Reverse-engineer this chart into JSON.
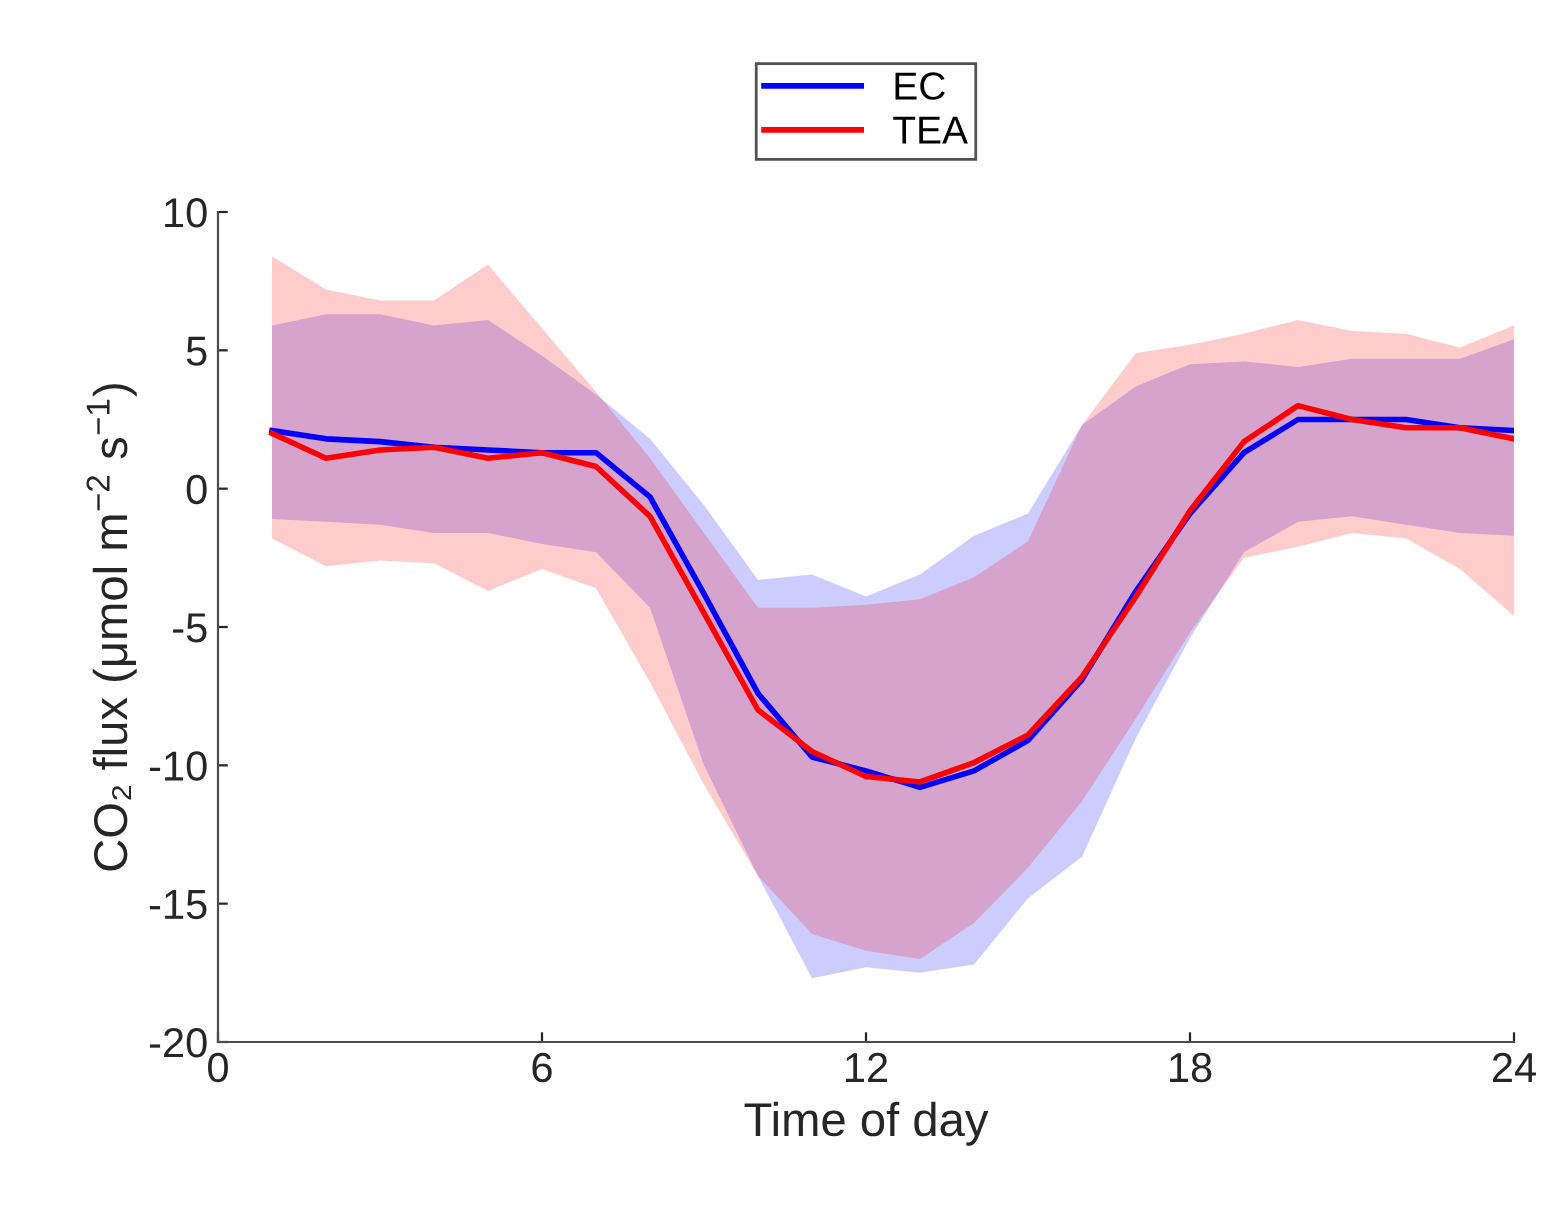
{
  "chart_data": {
    "type": "line",
    "xlabel": "Time of day",
    "ylabel": "CO₂ flux (μmol m$^{−2}$ s$^{−1}$)",
    "x": [
      1,
      2,
      3,
      4,
      5,
      6,
      7,
      8,
      9,
      10,
      11,
      12,
      13,
      14,
      15,
      16,
      17,
      18,
      19,
      20,
      21,
      22,
      23,
      24
    ],
    "series": [
      {
        "name": "EC",
        "color": "#0000ff",
        "values": [
          2.1,
          1.8,
          1.7,
          1.5,
          1.4,
          1.3,
          1.3,
          -0.3,
          -3.8,
          -7.4,
          -9.7,
          -10.2,
          -10.8,
          -10.2,
          -9.1,
          -6.9,
          -3.7,
          -0.9,
          1.3,
          2.5,
          2.5,
          2.5,
          2.2,
          2.1
        ],
        "upper": [
          5.9,
          6.3,
          6.3,
          5.9,
          6.1,
          4.8,
          3.4,
          1.8,
          -0.6,
          -3.3,
          -3.1,
          -3.9,
          -3.1,
          -1.7,
          -0.9,
          2.3,
          3.7,
          4.5,
          4.6,
          4.4,
          4.7,
          4.7,
          4.7,
          5.4
        ],
        "lower": [
          -1.1,
          -1.2,
          -1.3,
          -1.6,
          -1.6,
          -2.0,
          -2.3,
          -4.3,
          -10.0,
          -14.0,
          -17.7,
          -17.3,
          -17.5,
          -17.2,
          -14.8,
          -13.3,
          -9.0,
          -5.4,
          -2.3,
          -1.2,
          -1.0,
          -1.3,
          -1.6,
          -1.7
        ]
      },
      {
        "name": "TEA",
        "color": "#ff0000",
        "values": [
          2.0,
          1.1,
          1.4,
          1.5,
          1.1,
          1.3,
          0.8,
          -1.0,
          -4.5,
          -8.0,
          -9.5,
          -10.4,
          -10.6,
          -9.9,
          -8.9,
          -6.8,
          -3.9,
          -0.8,
          1.7,
          3.0,
          2.5,
          2.2,
          2.2,
          1.8
        ],
        "upper": [
          8.4,
          7.2,
          6.8,
          6.8,
          8.1,
          5.8,
          3.5,
          1.1,
          -1.6,
          -4.3,
          -4.3,
          -4.2,
          -4.0,
          -3.2,
          -1.9,
          2.3,
          4.9,
          5.2,
          5.6,
          6.1,
          5.7,
          5.6,
          5.1,
          5.9
        ],
        "lower": [
          -1.8,
          -2.8,
          -2.6,
          -2.7,
          -3.7,
          -2.9,
          -3.6,
          -7.0,
          -10.7,
          -14.0,
          -16.1,
          -16.7,
          -17.0,
          -15.7,
          -13.7,
          -11.3,
          -8.3,
          -5.2,
          -2.5,
          -2.1,
          -1.6,
          -1.8,
          -2.9,
          -4.6
        ]
      }
    ],
    "xlim": [
      0,
      24
    ],
    "xticks": [
      0,
      6,
      12,
      18,
      24
    ],
    "ylim": [
      -20,
      10
    ],
    "yticks": [
      -20,
      -15,
      -10,
      -5,
      0,
      5,
      10
    ],
    "legend": "top",
    "grid": false,
    "marker": "none",
    "line_style": "solid"
  }
}
